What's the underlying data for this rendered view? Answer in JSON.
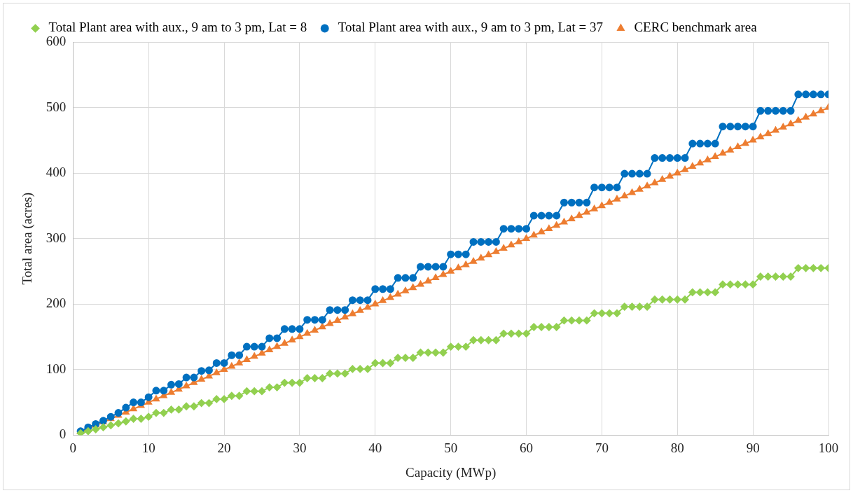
{
  "chart_data": {
    "type": "line",
    "xlabel": "Capacity (MWp)",
    "ylabel": "Total area (acres)",
    "x": [
      1,
      2,
      3,
      4,
      5,
      6,
      7,
      8,
      9,
      10,
      11,
      12,
      13,
      14,
      15,
      16,
      17,
      18,
      19,
      20,
      21,
      22,
      23,
      24,
      25,
      26,
      27,
      28,
      29,
      30,
      31,
      32,
      33,
      34,
      35,
      36,
      37,
      38,
      39,
      40,
      41,
      42,
      43,
      44,
      45,
      46,
      47,
      48,
      49,
      50,
      51,
      52,
      53,
      54,
      55,
      56,
      57,
      58,
      59,
      60,
      61,
      62,
      63,
      64,
      65,
      66,
      67,
      68,
      69,
      70,
      71,
      72,
      73,
      74,
      75,
      76,
      77,
      78,
      79,
      80,
      81,
      82,
      83,
      84,
      85,
      86,
      87,
      88,
      89,
      90,
      91,
      92,
      93,
      94,
      95,
      96,
      97,
      98,
      99,
      100
    ],
    "series": [
      {
        "name": "Total Plant area with aux., 9 am to 3 pm, Lat = 8",
        "color": "#92d050",
        "marker": "diamond",
        "values": [
          3,
          6,
          9,
          12,
          15,
          18,
          21,
          25,
          25,
          28,
          34,
          34,
          39,
          39,
          44,
          44,
          49,
          49,
          55,
          55,
          60,
          60,
          67,
          67,
          67,
          73,
          73,
          80,
          80,
          80,
          87,
          87,
          87,
          94,
          94,
          94,
          101,
          101,
          101,
          110,
          110,
          110,
          118,
          118,
          118,
          126,
          126,
          126,
          126,
          135,
          135,
          135,
          145,
          145,
          145,
          145,
          155,
          155,
          155,
          155,
          165,
          165,
          165,
          165,
          175,
          175,
          175,
          175,
          186,
          186,
          186,
          186,
          196,
          196,
          196,
          196,
          207,
          207,
          207,
          207,
          207,
          218,
          218,
          218,
          218,
          230,
          230,
          230,
          230,
          230,
          242,
          242,
          242,
          242,
          242,
          255,
          255,
          255,
          255,
          255
        ]
      },
      {
        "name": "Total Plant area with aux., 9 am to 3 pm, Lat = 37",
        "color": "#0070c0",
        "marker": "circle",
        "values": [
          6,
          12,
          17,
          22,
          28,
          34,
          42,
          50,
          50,
          58,
          68,
          68,
          77,
          78,
          88,
          88,
          98,
          99,
          110,
          110,
          122,
          122,
          135,
          135,
          135,
          148,
          148,
          162,
          162,
          162,
          176,
          176,
          176,
          191,
          191,
          191,
          206,
          206,
          206,
          223,
          223,
          223,
          240,
          240,
          240,
          257,
          257,
          257,
          257,
          276,
          276,
          276,
          295,
          295,
          295,
          295,
          315,
          315,
          315,
          315,
          335,
          335,
          335,
          335,
          355,
          355,
          355,
          355,
          378,
          378,
          378,
          378,
          399,
          399,
          399,
          399,
          423,
          423,
          423,
          423,
          423,
          445,
          445,
          445,
          445,
          471,
          471,
          471,
          471,
          471,
          495,
          495,
          495,
          495,
          495,
          520,
          520,
          520,
          520,
          520
        ]
      },
      {
        "name": "CERC benchmark area",
        "color": "#ed7d31",
        "marker": "triangle",
        "values": [
          5,
          10,
          15,
          20,
          25,
          30,
          35,
          40,
          45,
          50,
          55,
          60,
          65,
          70,
          75,
          80,
          85,
          90,
          95,
          100,
          105,
          110,
          115,
          120,
          125,
          130,
          135,
          140,
          145,
          150,
          155,
          160,
          165,
          170,
          175,
          180,
          185,
          190,
          195,
          200,
          205,
          210,
          215,
          220,
          225,
          230,
          235,
          240,
          245,
          250,
          255,
          260,
          265,
          270,
          275,
          280,
          285,
          290,
          295,
          300,
          305,
          310,
          315,
          320,
          325,
          330,
          335,
          340,
          345,
          350,
          355,
          360,
          365,
          370,
          375,
          380,
          385,
          390,
          395,
          400,
          405,
          410,
          415,
          420,
          425,
          430,
          435,
          440,
          445,
          450,
          455,
          460,
          465,
          470,
          475,
          480,
          485,
          490,
          495,
          500
        ]
      }
    ],
    "xlim": [
      0,
      100
    ],
    "xticks": [
      0,
      10,
      20,
      30,
      40,
      50,
      60,
      70,
      80,
      90,
      100
    ],
    "ylim": [
      0,
      600
    ],
    "yticks": [
      0,
      100,
      200,
      300,
      400,
      500,
      600
    ],
    "grid": true,
    "legend": "top",
    "line_style": "solid"
  }
}
